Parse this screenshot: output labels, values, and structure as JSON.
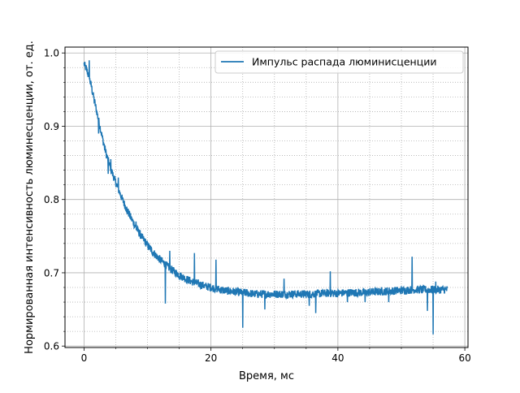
{
  "chart_data": {
    "type": "line",
    "title": "",
    "xlabel": "Время, мс",
    "ylabel": "Нормированная интенсивность люминесценции, от. ед.",
    "xlim": [
      -3,
      60.5
    ],
    "ylim": [
      0.598,
      1.008
    ],
    "x_ticks": [
      0,
      20,
      40,
      60
    ],
    "x_tick_labels": [
      "0",
      "20",
      "40",
      "60"
    ],
    "x_minor_ticks": [
      5,
      10,
      15,
      25,
      30,
      35,
      45,
      50,
      55
    ],
    "y_ticks": [
      0.6,
      0.7,
      0.8,
      0.9,
      1.0
    ],
    "y_tick_labels": [
      "0.6",
      "0.7",
      "0.8",
      "0.9",
      "1.0"
    ],
    "y_minor_ticks": [
      0.62,
      0.64,
      0.66,
      0.68,
      0.72,
      0.74,
      0.76,
      0.78,
      0.82,
      0.84,
      0.86,
      0.88,
      0.92,
      0.94,
      0.96,
      0.98
    ],
    "grid": "major solid, minor dotted",
    "legend": "top-right",
    "colors": {
      "series": "#1f77b4",
      "grid": "#b0b0b0",
      "axes": "#000000"
    },
    "series": [
      {
        "name": "Импульс распада люминисценции",
        "x": [
          0,
          0.5,
          1,
          1.5,
          2,
          2.5,
          3,
          3.5,
          4,
          4.5,
          5,
          5.5,
          6,
          6.5,
          7,
          7.5,
          8,
          8.5,
          9,
          9.5,
          10,
          10.5,
          11,
          11.5,
          12,
          12.5,
          13,
          13.5,
          14,
          14.5,
          15,
          16,
          17,
          18,
          19,
          20,
          21,
          22,
          23,
          24,
          25,
          26,
          27,
          28,
          29,
          30,
          32,
          34,
          36,
          38,
          40,
          42,
          44,
          46,
          48,
          50,
          52,
          54,
          56,
          57.3
        ],
        "y": [
          0.985,
          0.975,
          0.96,
          0.94,
          0.92,
          0.9,
          0.88,
          0.862,
          0.848,
          0.835,
          0.823,
          0.812,
          0.801,
          0.791,
          0.782,
          0.773,
          0.765,
          0.757,
          0.75,
          0.744,
          0.738,
          0.732,
          0.727,
          0.722,
          0.718,
          0.714,
          0.71,
          0.706,
          0.703,
          0.7,
          0.697,
          0.692,
          0.688,
          0.685,
          0.682,
          0.68,
          0.678,
          0.676,
          0.675,
          0.674,
          0.673,
          0.672,
          0.671,
          0.671,
          0.671,
          0.671,
          0.671,
          0.671,
          0.671,
          0.672,
          0.672,
          0.673,
          0.673,
          0.674,
          0.675,
          0.676,
          0.677,
          0.677,
          0.677,
          0.677
        ]
      }
    ],
    "spikes": [
      {
        "x": 0.8,
        "y": 0.99
      },
      {
        "x": 1.2,
        "y": 0.955
      },
      {
        "x": 2.3,
        "y": 0.89
      },
      {
        "x": 3.8,
        "y": 0.835
      },
      {
        "x": 4.2,
        "y": 0.855
      },
      {
        "x": 5.4,
        "y": 0.83
      },
      {
        "x": 6.8,
        "y": 0.78
      },
      {
        "x": 8.2,
        "y": 0.77
      },
      {
        "x": 12.8,
        "y": 0.658
      },
      {
        "x": 13.5,
        "y": 0.73
      },
      {
        "x": 17.4,
        "y": 0.727
      },
      {
        "x": 20.8,
        "y": 0.718
      },
      {
        "x": 25.0,
        "y": 0.625
      },
      {
        "x": 28.5,
        "y": 0.65
      },
      {
        "x": 31.5,
        "y": 0.692
      },
      {
        "x": 35.5,
        "y": 0.655
      },
      {
        "x": 36.5,
        "y": 0.645
      },
      {
        "x": 38.8,
        "y": 0.702
      },
      {
        "x": 41.5,
        "y": 0.66
      },
      {
        "x": 44.3,
        "y": 0.66
      },
      {
        "x": 48.0,
        "y": 0.66
      },
      {
        "x": 51.7,
        "y": 0.722
      },
      {
        "x": 54.1,
        "y": 0.648
      },
      {
        "x": 55.0,
        "y": 0.616
      },
      {
        "x": 55.4,
        "y": 0.688
      }
    ]
  }
}
